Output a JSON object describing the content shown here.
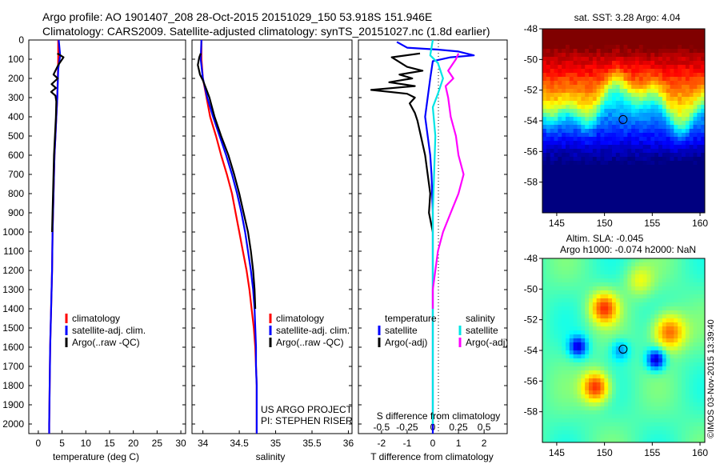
{
  "header": {
    "line1": "Argo profile: AO 1901407_208 28-Oct-2015 20151029_150 53.918S 151.946E",
    "line2": "Climatology: CARS2009. Satellite-adjusted climatology: synTS_20151027.nc (1.8d earlier)"
  },
  "colors": {
    "climatology": "#ff0000",
    "satellite": "#0000ff",
    "argo": "#000000",
    "sal_satellite": "#00e5e5",
    "sal_argo": "#ff00ff"
  },
  "chart_data": [
    {
      "type": "line",
      "name": "temperature-profile",
      "xlabel": "temperature (deg C)",
      "xticks": [
        0,
        5,
        10,
        15,
        20,
        25,
        30
      ],
      "xlim": [
        -2,
        31
      ],
      "ylim": [
        0,
        2050
      ],
      "yticks": [
        0,
        100,
        200,
        300,
        400,
        500,
        600,
        700,
        800,
        900,
        1000,
        1100,
        1200,
        1300,
        1400,
        1500,
        1600,
        1700,
        1800,
        1900,
        2000
      ],
      "legend": [
        "climatology",
        "satellite-adj. clim.",
        "Argo(..raw -QC)"
      ],
      "series": [
        {
          "name": "climatology",
          "color": "#ff0000",
          "points": [
            [
              4.2,
              0
            ],
            [
              4.2,
              100
            ],
            [
              4.1,
              200
            ],
            [
              4.0,
              300
            ],
            [
              3.8,
              400
            ],
            [
              3.6,
              500
            ],
            [
              3.4,
              600
            ],
            [
              3.3,
              700
            ],
            [
              3.2,
              800
            ],
            [
              3.1,
              900
            ],
            [
              3.0,
              1000
            ],
            [
              2.9,
              1200
            ],
            [
              2.7,
              1400
            ],
            [
              2.5,
              1600
            ],
            [
              2.4,
              1800
            ],
            [
              2.3,
              2000
            ],
            [
              2.3,
              2050
            ]
          ]
        },
        {
          "name": "satellite-adj. clim.",
          "color": "#0000ff",
          "points": [
            [
              4.3,
              0
            ],
            [
              4.6,
              80
            ],
            [
              4.2,
              150
            ],
            [
              4.0,
              300
            ],
            [
              3.8,
              400
            ],
            [
              3.6,
              500
            ],
            [
              3.4,
              600
            ],
            [
              3.3,
              700
            ],
            [
              3.2,
              800
            ],
            [
              3.1,
              900
            ],
            [
              3.0,
              1000
            ],
            [
              2.9,
              1200
            ],
            [
              2.7,
              1400
            ],
            [
              2.5,
              1600
            ],
            [
              2.4,
              1800
            ],
            [
              2.3,
              2000
            ],
            [
              2.3,
              2050
            ]
          ]
        },
        {
          "name": "Argo(..raw -QC)",
          "color": "#000000",
          "points": [
            [
              4.0,
              70
            ],
            [
              5.3,
              90
            ],
            [
              4.2,
              130
            ],
            [
              3.2,
              180
            ],
            [
              4.1,
              200
            ],
            [
              2.8,
              230
            ],
            [
              3.7,
              250
            ],
            [
              2.7,
              270
            ],
            [
              3.6,
              290
            ],
            [
              3.8,
              320
            ],
            [
              3.7,
              400
            ],
            [
              3.5,
              500
            ],
            [
              3.3,
              600
            ],
            [
              3.2,
              700
            ],
            [
              3.1,
              800
            ],
            [
              3.0,
              900
            ],
            [
              2.9,
              1000
            ]
          ]
        }
      ]
    },
    {
      "type": "line",
      "name": "salinity-profile",
      "xlabel": "salinity",
      "xticks": [
        34,
        34.5,
        35,
        35.5,
        36
      ],
      "xlim": [
        33.85,
        36.05
      ],
      "ylim": [
        0,
        2050
      ],
      "legend": [
        "climatology",
        "satellite-adj. clim.",
        "Argo(..raw -QC)"
      ],
      "annotation": [
        "US ARGO PROJECT",
        "PI: STEPHEN RISER"
      ],
      "series": [
        {
          "name": "climatology",
          "color": "#ff0000",
          "points": [
            [
              33.98,
              0
            ],
            [
              33.98,
              100
            ],
            [
              34.0,
              200
            ],
            [
              34.05,
              300
            ],
            [
              34.1,
              400
            ],
            [
              34.18,
              500
            ],
            [
              34.25,
              600
            ],
            [
              34.33,
              700
            ],
            [
              34.4,
              800
            ],
            [
              34.45,
              900
            ],
            [
              34.5,
              1000
            ],
            [
              34.55,
              1100
            ],
            [
              34.6,
              1200
            ],
            [
              34.64,
              1300
            ],
            [
              34.67,
              1400
            ],
            [
              34.7,
              1500
            ],
            [
              34.72,
              1600
            ],
            [
              34.73,
              1700
            ],
            [
              34.74,
              1800
            ],
            [
              34.74,
              1900
            ],
            [
              34.74,
              2000
            ],
            [
              34.74,
              2050
            ]
          ]
        },
        {
          "name": "satellite-adj. clim.",
          "color": "#0000ff",
          "points": [
            [
              33.98,
              0
            ],
            [
              33.97,
              100
            ],
            [
              34.0,
              200
            ],
            [
              34.06,
              300
            ],
            [
              34.14,
              400
            ],
            [
              34.23,
              500
            ],
            [
              34.32,
              600
            ],
            [
              34.4,
              700
            ],
            [
              34.47,
              800
            ],
            [
              34.53,
              900
            ],
            [
              34.58,
              1000
            ],
            [
              34.62,
              1100
            ],
            [
              34.66,
              1200
            ],
            [
              34.69,
              1300
            ],
            [
              34.71,
              1400
            ],
            [
              34.72,
              1500
            ],
            [
              34.73,
              1600
            ],
            [
              34.73,
              1700
            ],
            [
              34.74,
              1800
            ],
            [
              34.74,
              1900
            ],
            [
              34.74,
              2000
            ],
            [
              34.74,
              2050
            ]
          ]
        },
        {
          "name": "Argo(..raw -QC)",
          "color": "#000000",
          "points": [
            [
              33.97,
              70
            ],
            [
              33.95,
              90
            ],
            [
              33.93,
              130
            ],
            [
              33.96,
              180
            ],
            [
              34.0,
              210
            ],
            [
              34.03,
              240
            ],
            [
              34.06,
              270
            ],
            [
              34.09,
              300
            ],
            [
              34.16,
              400
            ],
            [
              34.25,
              500
            ],
            [
              34.35,
              600
            ],
            [
              34.43,
              700
            ],
            [
              34.5,
              800
            ],
            [
              34.56,
              900
            ],
            [
              34.62,
              1000
            ],
            [
              34.66,
              1100
            ],
            [
              34.69,
              1200
            ],
            [
              34.71,
              1300
            ],
            [
              34.72,
              1400
            ]
          ]
        }
      ]
    },
    {
      "type": "line",
      "name": "difference-profile",
      "xlabel": "T difference from climatology",
      "xlabel2": "S difference from climatology",
      "xticks": [
        -2,
        -1,
        0,
        1,
        2
      ],
      "xticks2": [
        "-0.5",
        "-0.25",
        "0",
        "0.25",
        "0.5"
      ],
      "xlim": [
        -2.9,
        2.9
      ],
      "ylim": [
        0,
        2050
      ],
      "legend_heads": [
        "temperature",
        "salinity"
      ],
      "legend": [
        "satellite",
        "Argo(-adj)",
        "satellite",
        "Argo(-adj)"
      ],
      "series": [
        {
          "name": "T satellite",
          "color": "#0000ff",
          "points": [
            [
              -1.4,
              10
            ],
            [
              -1.0,
              40
            ],
            [
              0.2,
              50
            ],
            [
              1.0,
              60
            ],
            [
              1.6,
              80
            ],
            [
              0.7,
              90
            ],
            [
              0.0,
              110
            ],
            [
              -0.1,
              200
            ],
            [
              -0.2,
              300
            ],
            [
              -0.3,
              400
            ],
            [
              -0.2,
              500
            ],
            [
              -0.1,
              600
            ],
            [
              -0.05,
              700
            ],
            [
              0,
              900
            ],
            [
              0,
              1100
            ],
            [
              0,
              1500
            ],
            [
              0,
              2050
            ]
          ]
        },
        {
          "name": "T Argo(-adj)",
          "color": "#000000",
          "points": [
            [
              -0.5,
              70
            ],
            [
              -1.6,
              90
            ],
            [
              -1.0,
              140
            ],
            [
              -0.4,
              160
            ],
            [
              -1.3,
              180
            ],
            [
              -0.8,
              200
            ],
            [
              -1.7,
              220
            ],
            [
              -0.7,
              240
            ],
            [
              -2.4,
              260
            ],
            [
              -1.0,
              280
            ],
            [
              -0.7,
              300
            ],
            [
              -0.9,
              330
            ],
            [
              -0.7,
              380
            ],
            [
              -0.6,
              420
            ],
            [
              -0.3,
              600
            ],
            [
              -0.2,
              700
            ],
            [
              -0.1,
              800
            ],
            [
              -0.15,
              900
            ],
            [
              0,
              1000
            ]
          ]
        },
        {
          "name": "S satellite",
          "color": "#00e5e5",
          "points": [
            [
              0.0,
              0
            ],
            [
              -0.1,
              80
            ],
            [
              0.2,
              120
            ],
            [
              0.4,
              200
            ],
            [
              0.2,
              280
            ],
            [
              0.0,
              350
            ],
            [
              0.1,
              500
            ],
            [
              0.05,
              700
            ],
            [
              0.0,
              900
            ],
            [
              0.0,
              1200
            ],
            [
              0.0,
              1600
            ],
            [
              0.0,
              2000
            ]
          ]
        },
        {
          "name": "S Argo(-adj)",
          "color": "#ff00ff",
          "points": [
            [
              1.0,
              70
            ],
            [
              0.9,
              100
            ],
            [
              0.6,
              160
            ],
            [
              0.8,
              200
            ],
            [
              0.5,
              240
            ],
            [
              0.6,
              300
            ],
            [
              0.7,
              400
            ],
            [
              0.9,
              500
            ],
            [
              1.0,
              600
            ],
            [
              1.2,
              700
            ],
            [
              1.0,
              800
            ],
            [
              0.7,
              900
            ],
            [
              0.4,
              1000
            ],
            [
              0.2,
              1100
            ],
            [
              0.1,
              1200
            ],
            [
              0.0,
              1300
            ],
            [
              0.0,
              1400
            ]
          ]
        }
      ]
    },
    {
      "type": "heatmap",
      "name": "sst-map",
      "title": "sat. SST: 3.28 Argo: 4.04",
      "xticks": [
        145,
        150,
        155,
        160
      ],
      "yticks": [
        -48,
        -50,
        -52,
        -54,
        -56,
        -58
      ],
      "xlim": [
        143.5,
        160.5
      ],
      "ylim": [
        -60,
        -48
      ]
    },
    {
      "type": "heatmap",
      "name": "sla-map",
      "title": "Altim. SLA: -0.045",
      "subtitle": "Argo h1000: -0.074 h2000: NaN",
      "xticks": [
        145,
        150,
        155,
        160
      ],
      "yticks": [
        -48,
        -50,
        -52,
        -54,
        -56,
        -58
      ],
      "xlim": [
        143.5,
        160.5
      ],
      "ylim": [
        -60,
        -48
      ]
    }
  ],
  "maps": {
    "marker_lon": 151.946,
    "marker_lat": -53.918
  },
  "credit": "©IMOS 03-Nov-2015 13:39:40"
}
